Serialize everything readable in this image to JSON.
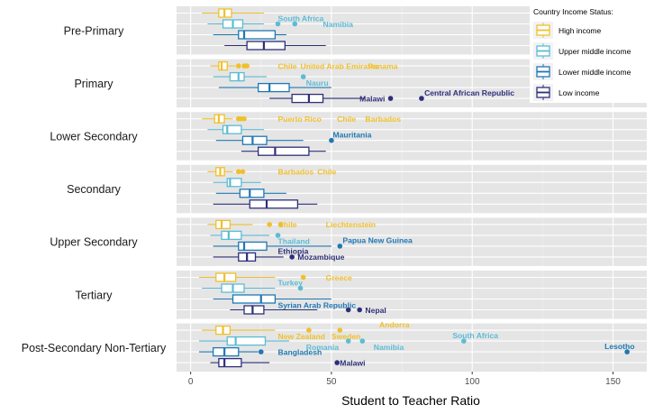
{
  "chart_data": {
    "type": "boxplot",
    "xlabel": "Student to Teacher Ratio",
    "xlim": [
      -5,
      162
    ],
    "xticks": [
      0,
      50,
      100,
      150
    ],
    "grid": true,
    "legend": {
      "title": "Country Income Status:",
      "placement": "top-right",
      "entries": [
        "Low income",
        "Lower middle income",
        "Upper middle income",
        "High income"
      ]
    },
    "colors": {
      "Low income": "#2e2f7b",
      "Lower middle income": "#1f78b4",
      "Upper middle income": "#5bbcd6",
      "High income": "#f0c02c",
      "panel_bg": "#e5e5e5"
    },
    "levels": [
      "Pre-Primary",
      "Primary",
      "Lower Secondary",
      "Secondary",
      "Upper Secondary",
      "Tertiary",
      "Post-Secondary Non-Tertiary"
    ],
    "boxes": {
      "Pre-Primary": [
        {
          "group": "High income",
          "whisker": [
            4,
            26
          ],
          "q1": 10,
          "median": 12,
          "q3": 14.5
        },
        {
          "group": "Upper middle income",
          "whisker": [
            6,
            26
          ],
          "q1": 11.5,
          "median": 15,
          "q3": 18.5
        },
        {
          "group": "Lower middle income",
          "whisker": [
            8,
            34
          ],
          "q1": 17,
          "median": 19,
          "q3": 30
        },
        {
          "group": "Low income",
          "whisker": [
            12,
            48
          ],
          "q1": 20,
          "median": 26,
          "q3": 33.5
        }
      ],
      "Primary": [
        {
          "group": "High income",
          "whisker": [
            7,
            16
          ],
          "q1": 10,
          "median": 11,
          "q3": 13
        },
        {
          "group": "Upper middle income",
          "whisker": [
            8,
            27
          ],
          "q1": 14,
          "median": 17,
          "q3": 19
        },
        {
          "group": "Lower middle income",
          "whisker": [
            10,
            50
          ],
          "q1": 24,
          "median": 28,
          "q3": 35
        },
        {
          "group": "Low income",
          "whisker": [
            28,
            62
          ],
          "q1": 36,
          "median": 42,
          "q3": 47
        }
      ],
      "Lower Secondary": [
        {
          "group": "High income",
          "whisker": [
            4,
            15
          ],
          "q1": 8.5,
          "median": 10,
          "q3": 12
        },
        {
          "group": "Upper middle income",
          "whisker": [
            6,
            26
          ],
          "q1": 11.5,
          "median": 13,
          "q3": 18
        },
        {
          "group": "Lower middle income",
          "whisker": [
            9,
            40
          ],
          "q1": 18.5,
          "median": 22,
          "q3": 27
        },
        {
          "group": "Low income",
          "whisker": [
            18,
            48
          ],
          "q1": 24,
          "median": 30,
          "q3": 42
        }
      ],
      "Secondary": [
        {
          "group": "High income",
          "whisker": [
            6,
            15
          ],
          "q1": 9,
          "median": 10.5,
          "q3": 12
        },
        {
          "group": "Upper middle income",
          "whisker": [
            8,
            25
          ],
          "q1": 13,
          "median": 14,
          "q3": 18
        },
        {
          "group": "Lower middle income",
          "whisker": [
            9,
            34
          ],
          "q1": 17.5,
          "median": 21,
          "q3": 26
        },
        {
          "group": "Low income",
          "whisker": [
            8,
            45
          ],
          "q1": 21,
          "median": 27,
          "q3": 38
        }
      ],
      "Upper Secondary": [
        {
          "group": "High income",
          "whisker": [
            6,
            22
          ],
          "q1": 9,
          "median": 11,
          "q3": 14
        },
        {
          "group": "Upper middle income",
          "whisker": [
            7,
            28
          ],
          "q1": 11,
          "median": 13.5,
          "q3": 18
        },
        {
          "group": "Lower middle income",
          "whisker": [
            8,
            50
          ],
          "q1": 17,
          "median": 19,
          "q3": 27
        },
        {
          "group": "Low income",
          "whisker": [
            8,
            33
          ],
          "q1": 17,
          "median": 20,
          "q3": 23
        }
      ],
      "Tertiary": [
        {
          "group": "High income",
          "whisker": [
            3,
            30
          ],
          "q1": 9,
          "median": 12,
          "q3": 16
        },
        {
          "group": "Upper middle income",
          "whisker": [
            4,
            30
          ],
          "q1": 11,
          "median": 15,
          "q3": 19
        },
        {
          "group": "Lower middle income",
          "whisker": [
            8,
            50
          ],
          "q1": 15,
          "median": 25,
          "q3": 30
        },
        {
          "group": "Low income",
          "whisker": [
            14,
            45
          ],
          "q1": 19,
          "median": 22,
          "q3": 26
        }
      ],
      "Post-Secondary Non-Tertiary": [
        {
          "group": "High income",
          "whisker": [
            4,
            30
          ],
          "q1": 9,
          "median": 11.5,
          "q3": 14
        },
        {
          "group": "Upper middle income",
          "whisker": [
            3,
            35
          ],
          "q1": 13,
          "median": 16,
          "q3": 26.5
        },
        {
          "group": "Lower middle income",
          "whisker": [
            3,
            24
          ],
          "q1": 8,
          "median": 12,
          "q3": 17
        },
        {
          "group": "Low income",
          "whisker": [
            7,
            28
          ],
          "q1": 10,
          "median": 12,
          "q3": 18
        }
      ]
    },
    "outliers": [
      {
        "level": "Pre-Primary",
        "group": "Upper middle income",
        "values": [
          31,
          37
        ]
      },
      {
        "level": "Primary",
        "group": "High income",
        "values": [
          17,
          19,
          20
        ]
      },
      {
        "level": "Primary",
        "group": "Upper middle income",
        "values": [
          40
        ]
      },
      {
        "level": "Primary",
        "group": "Low income",
        "values": [
          71,
          82
        ]
      },
      {
        "level": "Lower Secondary",
        "group": "High income",
        "values": [
          17,
          18,
          19
        ]
      },
      {
        "level": "Lower Secondary",
        "group": "Lower middle income",
        "values": [
          50
        ]
      },
      {
        "level": "Secondary",
        "group": "High income",
        "values": [
          17,
          18.5
        ]
      },
      {
        "level": "Upper Secondary",
        "group": "High income",
        "values": [
          28,
          32
        ]
      },
      {
        "level": "Upper Secondary",
        "group": "Upper middle income",
        "values": [
          31
        ]
      },
      {
        "level": "Upper Secondary",
        "group": "Lower middle income",
        "values": [
          53
        ]
      },
      {
        "level": "Upper Secondary",
        "group": "Low income",
        "values": [
          36
        ]
      },
      {
        "level": "Tertiary",
        "group": "High income",
        "values": [
          40
        ]
      },
      {
        "level": "Tertiary",
        "group": "Upper middle income",
        "values": [
          39
        ]
      },
      {
        "level": "Tertiary",
        "group": "Low income",
        "values": [
          56,
          60
        ]
      },
      {
        "level": "Post-Secondary Non-Tertiary",
        "group": "High income",
        "values": [
          42,
          53
        ]
      },
      {
        "level": "Post-Secondary Non-Tertiary",
        "group": "Upper middle income",
        "values": [
          56,
          61,
          97
        ]
      },
      {
        "level": "Post-Secondary Non-Tertiary",
        "group": "Lower middle income",
        "values": [
          25,
          155
        ]
      },
      {
        "level": "Post-Secondary Non-Tertiary",
        "group": "Low income",
        "values": [
          52
        ]
      }
    ],
    "annotations": [
      {
        "level": "Pre-Primary",
        "group": "Upper middle income",
        "x": 31,
        "text": "South Africa",
        "pos": "above"
      },
      {
        "level": "Pre-Primary",
        "group": "Upper middle income",
        "x": 47,
        "text": "Namibia",
        "pos": "right"
      },
      {
        "level": "Primary",
        "group": "High income",
        "x": 31,
        "text": "Chile"
      },
      {
        "level": "Primary",
        "group": "High income",
        "x": 39,
        "text": "United Arab Emirates"
      },
      {
        "level": "Primary",
        "group": "High income",
        "x": 63,
        "text": "Panama"
      },
      {
        "level": "Primary",
        "group": "Upper middle income",
        "x": 41,
        "text": "Nauru",
        "pos": "below"
      },
      {
        "level": "Primary",
        "group": "Low income",
        "x": 60,
        "text": "Malawi"
      },
      {
        "level": "Primary",
        "group": "Low income",
        "x": 83,
        "text": "Central African Republic",
        "pos": "above"
      },
      {
        "level": "Lower Secondary",
        "group": "High income",
        "x": 31,
        "text": "Puerto Rico"
      },
      {
        "level": "Lower Secondary",
        "group": "High income",
        "x": 52,
        "text": "Chile"
      },
      {
        "level": "Lower Secondary",
        "group": "High income",
        "x": 62,
        "text": "Barbados"
      },
      {
        "level": "Lower Secondary",
        "group": "Lower middle income",
        "x": 50.5,
        "text": "Mauritania",
        "pos": "above"
      },
      {
        "level": "Secondary",
        "group": "High income",
        "x": 31,
        "text": "Barbados"
      },
      {
        "level": "Secondary",
        "group": "High income",
        "x": 45,
        "text": "Chile"
      },
      {
        "level": "Upper Secondary",
        "group": "High income",
        "x": 31,
        "text": "Chile"
      },
      {
        "level": "Upper Secondary",
        "group": "High income",
        "x": 48,
        "text": "Liechtenstein"
      },
      {
        "level": "Upper Secondary",
        "group": "Upper middle income",
        "x": 31,
        "text": "Thailand",
        "pos": "below"
      },
      {
        "level": "Upper Secondary",
        "group": "Lower middle income",
        "x": 54,
        "text": "Papua New Guinea",
        "pos": "above"
      },
      {
        "level": "Upper Secondary",
        "group": "Low income",
        "x": 31,
        "text": "Ethiopia",
        "pos": "above"
      },
      {
        "level": "Upper Secondary",
        "group": "Low income",
        "x": 38,
        "text": "Mozambique"
      },
      {
        "level": "Tertiary",
        "group": "High income",
        "x": 48,
        "text": "Greece"
      },
      {
        "level": "Tertiary",
        "group": "Upper middle income",
        "x": 31,
        "text": "Turkey",
        "pos": "above"
      },
      {
        "level": "Tertiary",
        "group": "Lower middle income",
        "x": 31,
        "text": "Syrian Arab Republic",
        "pos": "below"
      },
      {
        "level": "Tertiary",
        "group": "Low income",
        "x": 62,
        "text": "Nepal"
      },
      {
        "level": "Post-Secondary Non-Tertiary",
        "group": "High income",
        "x": 67,
        "text": "Andorra",
        "pos": "above"
      },
      {
        "level": "Post-Secondary Non-Tertiary",
        "group": "High income",
        "x": 31,
        "text": "New Zealand",
        "pos": "below"
      },
      {
        "level": "Post-Secondary Non-Tertiary",
        "group": "High income",
        "x": 50,
        "text": "Sweden",
        "pos": "below"
      },
      {
        "level": "Post-Secondary Non-Tertiary",
        "group": "Upper middle income",
        "x": 93,
        "text": "South Africa",
        "pos": "above"
      },
      {
        "level": "Post-Secondary Non-Tertiary",
        "group": "Upper middle income",
        "x": 41,
        "text": "Romania",
        "pos": "below"
      },
      {
        "level": "Post-Secondary Non-Tertiary",
        "group": "Upper middle income",
        "x": 65,
        "text": "Namibia",
        "pos": "below"
      },
      {
        "level": "Post-Secondary Non-Tertiary",
        "group": "Lower middle income",
        "x": 147,
        "text": "Lesotho",
        "pos": "above"
      },
      {
        "level": "Post-Secondary Non-Tertiary",
        "group": "Lower middle income",
        "x": 31,
        "text": "Bangladesh"
      },
      {
        "level": "Post-Secondary Non-Tertiary",
        "group": "Low income",
        "x": 53,
        "text": "Malawi"
      }
    ]
  }
}
